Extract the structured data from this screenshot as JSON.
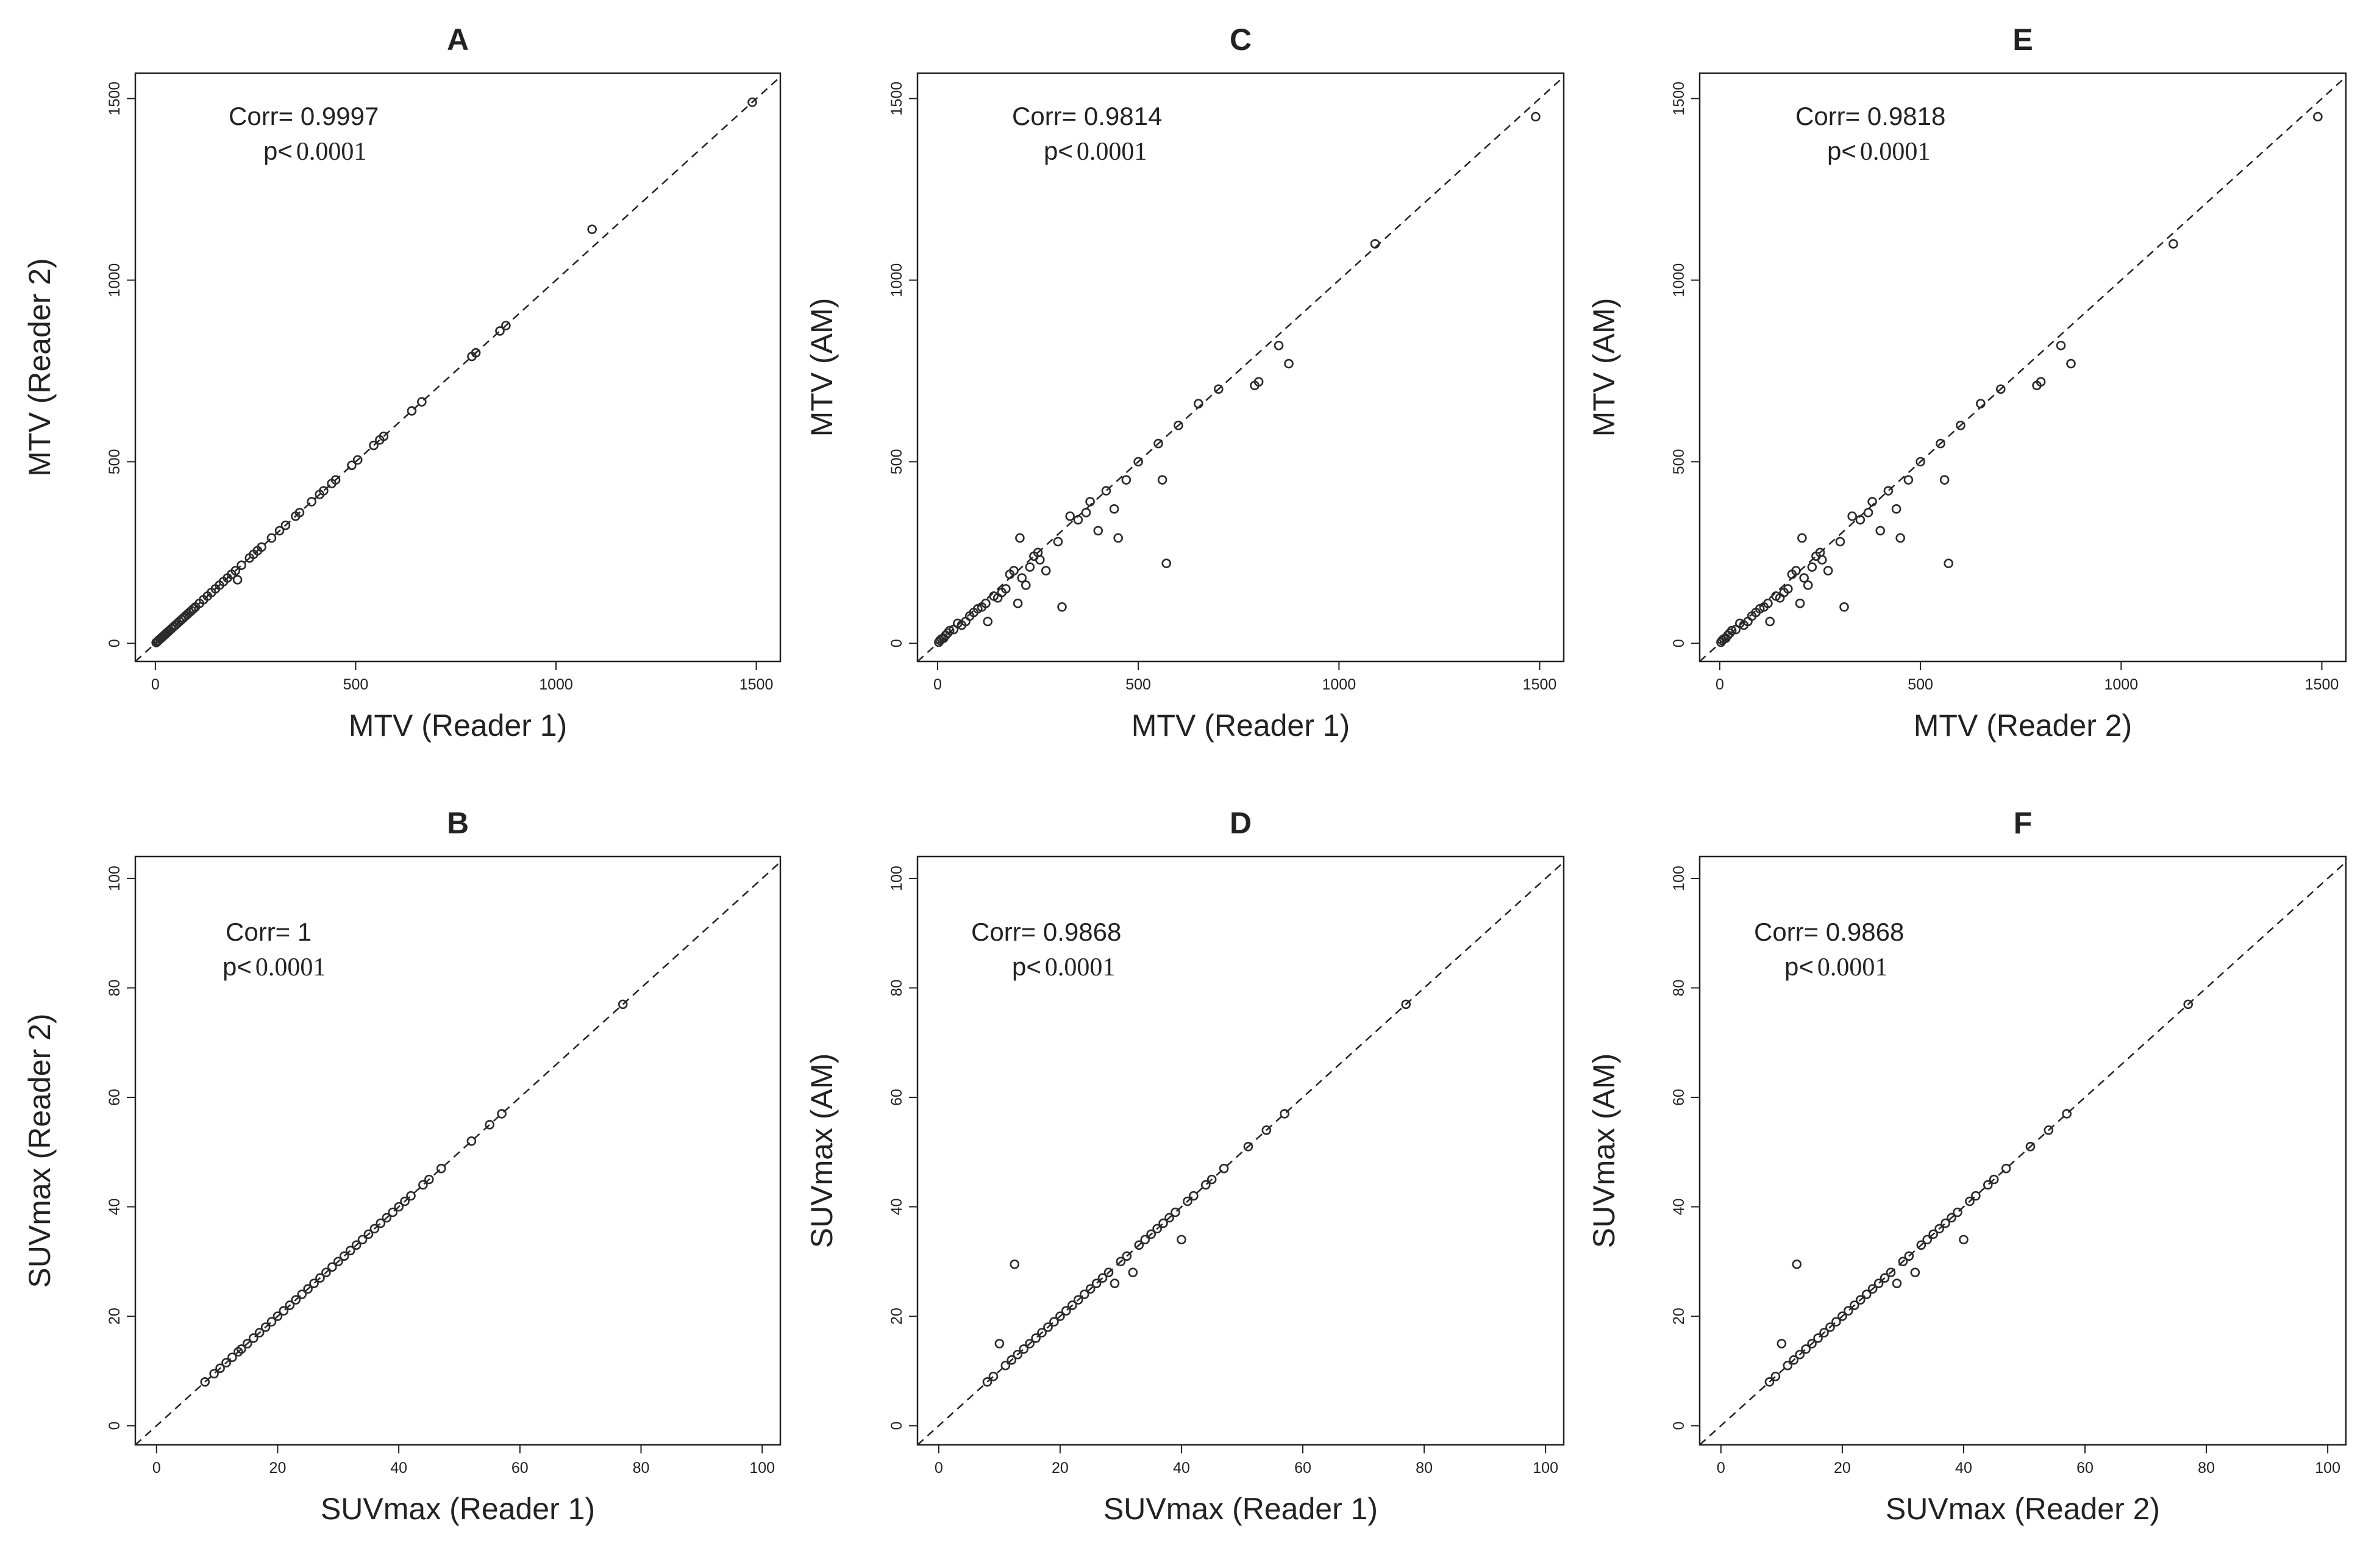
{
  "figure_label": "Six-panel scatter plot comparison of readers and AM",
  "chart_data": [
    {
      "panel": "A",
      "type": "scatter",
      "title": "A",
      "xlabel": "MTV (Reader 1)",
      "ylabel": "MTV (Reader 2)",
      "xlim": [
        -50,
        1560
      ],
      "ylim": [
        -50,
        1570
      ],
      "xticks": [
        0,
        500,
        1000,
        1500
      ],
      "yticks": [
        0,
        500,
        1000,
        1500
      ],
      "xtick_labels": [
        "0",
        "500",
        "1000",
        "1500"
      ],
      "ytick_labels": [
        "0",
        "500",
        "1000",
        "1500"
      ],
      "corr_text": "Corr= 0.9997",
      "p_prefix": "p<",
      "p_value": "0.0001",
      "reference_line": "y = x (dashed)",
      "points": [
        [
          2,
          2
        ],
        [
          5,
          5
        ],
        [
          8,
          8
        ],
        [
          12,
          12
        ],
        [
          15,
          15
        ],
        [
          18,
          18
        ],
        [
          22,
          22
        ],
        [
          25,
          25
        ],
        [
          28,
          28
        ],
        [
          32,
          32
        ],
        [
          35,
          35
        ],
        [
          40,
          40
        ],
        [
          45,
          45
        ],
        [
          50,
          50
        ],
        [
          55,
          55
        ],
        [
          60,
          60
        ],
        [
          65,
          65
        ],
        [
          70,
          70
        ],
        [
          75,
          75
        ],
        [
          80,
          80
        ],
        [
          85,
          85
        ],
        [
          90,
          90
        ],
        [
          95,
          95
        ],
        [
          100,
          100
        ],
        [
          110,
          110
        ],
        [
          120,
          120
        ],
        [
          130,
          130
        ],
        [
          140,
          140
        ],
        [
          150,
          150
        ],
        [
          160,
          160
        ],
        [
          170,
          170
        ],
        [
          180,
          180
        ],
        [
          190,
          190
        ],
        [
          200,
          200
        ],
        [
          205,
          175
        ],
        [
          215,
          215
        ],
        [
          235,
          235
        ],
        [
          245,
          245
        ],
        [
          255,
          255
        ],
        [
          265,
          265
        ],
        [
          290,
          290
        ],
        [
          310,
          310
        ],
        [
          325,
          325
        ],
        [
          350,
          350
        ],
        [
          360,
          360
        ],
        [
          390,
          390
        ],
        [
          410,
          410
        ],
        [
          420,
          420
        ],
        [
          440,
          440
        ],
        [
          450,
          450
        ],
        [
          490,
          490
        ],
        [
          505,
          505
        ],
        [
          545,
          545
        ],
        [
          560,
          560
        ],
        [
          570,
          570
        ],
        [
          640,
          640
        ],
        [
          665,
          665
        ],
        [
          790,
          790
        ],
        [
          800,
          800
        ],
        [
          860,
          860
        ],
        [
          875,
          875
        ],
        [
          1090,
          1140
        ],
        [
          1490,
          1490
        ]
      ]
    },
    {
      "panel": "B",
      "type": "scatter",
      "title": "B",
      "xlabel": "SUVmax (Reader 1)",
      "ylabel": "SUVmax (Reader 2)",
      "xlim": [
        -3.5,
        103
      ],
      "ylim": [
        -3.5,
        104
      ],
      "xticks": [
        0,
        20,
        40,
        60,
        80,
        100
      ],
      "yticks": [
        0,
        20,
        40,
        60,
        80,
        100
      ],
      "xtick_labels": [
        "0",
        "20",
        "40",
        "60",
        "80",
        "100"
      ],
      "ytick_labels": [
        "0",
        "20",
        "40",
        "60",
        "80",
        "100"
      ],
      "corr_text": "Corr= 1",
      "p_prefix": "p<",
      "p_value": "0.0001",
      "reference_line": "y = x (dashed)",
      "points": [
        [
          8,
          8
        ],
        [
          9.5,
          9.5
        ],
        [
          10.5,
          10.5
        ],
        [
          11.5,
          11.5
        ],
        [
          12.5,
          12.5
        ],
        [
          13.5,
          13.5
        ],
        [
          14,
          14
        ],
        [
          15,
          15
        ],
        [
          16,
          16
        ],
        [
          17,
          17
        ],
        [
          18,
          18
        ],
        [
          19,
          19
        ],
        [
          20,
          20
        ],
        [
          21,
          21
        ],
        [
          22,
          22
        ],
        [
          23,
          23
        ],
        [
          24,
          24
        ],
        [
          25,
          25
        ],
        [
          26,
          26
        ],
        [
          27,
          27
        ],
        [
          28,
          28
        ],
        [
          29,
          29
        ],
        [
          30,
          30
        ],
        [
          31,
          31
        ],
        [
          32,
          32
        ],
        [
          33,
          33
        ],
        [
          34,
          34
        ],
        [
          35,
          35
        ],
        [
          36,
          36
        ],
        [
          37,
          37
        ],
        [
          38,
          38
        ],
        [
          39,
          39
        ],
        [
          40,
          40
        ],
        [
          41,
          41
        ],
        [
          42,
          42
        ],
        [
          44,
          44
        ],
        [
          45,
          45
        ],
        [
          47,
          47
        ],
        [
          52,
          52
        ],
        [
          55,
          55
        ],
        [
          57,
          57
        ],
        [
          77,
          77
        ]
      ]
    },
    {
      "panel": "C",
      "type": "scatter",
      "title": "C",
      "xlabel": "MTV (Reader 1)",
      "ylabel": "MTV (AM)",
      "xlim": [
        -50,
        1560
      ],
      "ylim": [
        -50,
        1570
      ],
      "xticks": [
        0,
        500,
        1000,
        1500
      ],
      "yticks": [
        0,
        500,
        1000,
        1500
      ],
      "xtick_labels": [
        "0",
        "500",
        "1000",
        "1500"
      ],
      "ytick_labels": [
        "0",
        "500",
        "1000",
        "1500"
      ],
      "corr_text": "Corr= 0.9814",
      "p_prefix": "p<",
      "p_value": "0.0001",
      "reference_line": "y = x (dashed)",
      "points": [
        [
          3,
          3
        ],
        [
          6,
          8
        ],
        [
          10,
          12
        ],
        [
          15,
          14
        ],
        [
          20,
          22
        ],
        [
          25,
          28
        ],
        [
          30,
          35
        ],
        [
          40,
          38
        ],
        [
          50,
          55
        ],
        [
          60,
          50
        ],
        [
          70,
          60
        ],
        [
          80,
          75
        ],
        [
          90,
          85
        ],
        [
          100,
          95
        ],
        [
          110,
          100
        ],
        [
          120,
          110
        ],
        [
          125,
          60
        ],
        [
          140,
          130
        ],
        [
          150,
          125
        ],
        [
          160,
          140
        ],
        [
          170,
          150
        ],
        [
          180,
          190
        ],
        [
          190,
          200
        ],
        [
          200,
          110
        ],
        [
          205,
          290
        ],
        [
          210,
          180
        ],
        [
          220,
          160
        ],
        [
          230,
          210
        ],
        [
          240,
          240
        ],
        [
          250,
          250
        ],
        [
          255,
          230
        ],
        [
          270,
          200
        ],
        [
          300,
          280
        ],
        [
          310,
          100
        ],
        [
          330,
          350
        ],
        [
          350,
          340
        ],
        [
          370,
          360
        ],
        [
          380,
          390
        ],
        [
          400,
          310
        ],
        [
          420,
          420
        ],
        [
          440,
          370
        ],
        [
          450,
          290
        ],
        [
          470,
          450
        ],
        [
          500,
          500
        ],
        [
          550,
          550
        ],
        [
          560,
          450
        ],
        [
          570,
          220
        ],
        [
          600,
          600
        ],
        [
          650,
          660
        ],
        [
          700,
          700
        ],
        [
          790,
          710
        ],
        [
          800,
          720
        ],
        [
          850,
          820
        ],
        [
          875,
          770
        ],
        [
          1090,
          1100
        ],
        [
          1490,
          1450
        ]
      ]
    },
    {
      "panel": "D",
      "type": "scatter",
      "title": "D",
      "xlabel": "SUVmax (Reader 1)",
      "ylabel": "SUVmax (AM)",
      "xlim": [
        -3.5,
        103
      ],
      "ylim": [
        -3.5,
        104
      ],
      "xticks": [
        0,
        20,
        40,
        60,
        80,
        100
      ],
      "yticks": [
        0,
        20,
        40,
        60,
        80,
        100
      ],
      "xtick_labels": [
        "0",
        "20",
        "40",
        "60",
        "80",
        "100"
      ],
      "ytick_labels": [
        "0",
        "20",
        "40",
        "60",
        "80",
        "100"
      ],
      "corr_text": "Corr= 0.9868",
      "p_prefix": "p<",
      "p_value": "0.0001",
      "reference_line": "y = x (dashed)",
      "points": [
        [
          8,
          8
        ],
        [
          9,
          9
        ],
        [
          10,
          15
        ],
        [
          11,
          11
        ],
        [
          12,
          12
        ],
        [
          12.5,
          29.5
        ],
        [
          13,
          13
        ],
        [
          14,
          14
        ],
        [
          15,
          15
        ],
        [
          16,
          16
        ],
        [
          17,
          17
        ],
        [
          18,
          18
        ],
        [
          19,
          19
        ],
        [
          20,
          20
        ],
        [
          21,
          21
        ],
        [
          22,
          22
        ],
        [
          23,
          23
        ],
        [
          24,
          24
        ],
        [
          25,
          25
        ],
        [
          26,
          26
        ],
        [
          27,
          27
        ],
        [
          28,
          28
        ],
        [
          29,
          26
        ],
        [
          30,
          30
        ],
        [
          31,
          31
        ],
        [
          32,
          28
        ],
        [
          33,
          33
        ],
        [
          34,
          34
        ],
        [
          35,
          35
        ],
        [
          36,
          36
        ],
        [
          37,
          37
        ],
        [
          38,
          38
        ],
        [
          39,
          39
        ],
        [
          40,
          34
        ],
        [
          41,
          41
        ],
        [
          42,
          42
        ],
        [
          44,
          44
        ],
        [
          45,
          45
        ],
        [
          47,
          47
        ],
        [
          51,
          51
        ],
        [
          54,
          54
        ],
        [
          57,
          57
        ],
        [
          77,
          77
        ]
      ]
    },
    {
      "panel": "E",
      "type": "scatter",
      "title": "E",
      "xlabel": "MTV (Reader 2)",
      "ylabel": "MTV (AM)",
      "xlim": [
        -50,
        1560
      ],
      "ylim": [
        -50,
        1570
      ],
      "xticks": [
        0,
        500,
        1000,
        1500
      ],
      "yticks": [
        0,
        500,
        1000,
        1500
      ],
      "xtick_labels": [
        "0",
        "500",
        "1000",
        "1500"
      ],
      "ytick_labels": [
        "0",
        "500",
        "1000",
        "1500"
      ],
      "corr_text": "Corr= 0.9818",
      "p_prefix": "p<",
      "p_value": "0.0001",
      "reference_line": "y = x (dashed)",
      "points": [
        [
          3,
          3
        ],
        [
          6,
          8
        ],
        [
          10,
          12
        ],
        [
          15,
          14
        ],
        [
          20,
          22
        ],
        [
          25,
          28
        ],
        [
          30,
          35
        ],
        [
          40,
          38
        ],
        [
          50,
          55
        ],
        [
          60,
          50
        ],
        [
          70,
          60
        ],
        [
          80,
          75
        ],
        [
          90,
          85
        ],
        [
          100,
          95
        ],
        [
          110,
          100
        ],
        [
          120,
          110
        ],
        [
          125,
          60
        ],
        [
          140,
          130
        ],
        [
          150,
          125
        ],
        [
          160,
          140
        ],
        [
          170,
          150
        ],
        [
          180,
          190
        ],
        [
          190,
          200
        ],
        [
          200,
          110
        ],
        [
          205,
          290
        ],
        [
          210,
          180
        ],
        [
          220,
          160
        ],
        [
          230,
          210
        ],
        [
          240,
          240
        ],
        [
          250,
          250
        ],
        [
          255,
          230
        ],
        [
          270,
          200
        ],
        [
          300,
          280
        ],
        [
          310,
          100
        ],
        [
          330,
          350
        ],
        [
          350,
          340
        ],
        [
          370,
          360
        ],
        [
          380,
          390
        ],
        [
          400,
          310
        ],
        [
          420,
          420
        ],
        [
          440,
          370
        ],
        [
          450,
          290
        ],
        [
          470,
          450
        ],
        [
          500,
          500
        ],
        [
          550,
          550
        ],
        [
          560,
          450
        ],
        [
          570,
          220
        ],
        [
          600,
          600
        ],
        [
          650,
          660
        ],
        [
          700,
          700
        ],
        [
          790,
          710
        ],
        [
          800,
          720
        ],
        [
          850,
          820
        ],
        [
          875,
          770
        ],
        [
          1130,
          1100
        ],
        [
          1490,
          1450
        ]
      ]
    },
    {
      "panel": "F",
      "type": "scatter",
      "title": "F",
      "xlabel": "SUVmax (Reader 2)",
      "ylabel": "SUVmax (AM)",
      "xlim": [
        -3.5,
        103
      ],
      "ylim": [
        -3.5,
        104
      ],
      "xticks": [
        0,
        20,
        40,
        60,
        80,
        100
      ],
      "yticks": [
        0,
        20,
        40,
        60,
        80,
        100
      ],
      "xtick_labels": [
        "0",
        "20",
        "40",
        "60",
        "80",
        "100"
      ],
      "ytick_labels": [
        "0",
        "20",
        "40",
        "60",
        "80",
        "100"
      ],
      "corr_text": "Corr= 0.9868",
      "p_prefix": "p<",
      "p_value": "0.0001",
      "reference_line": "y = x (dashed)",
      "points": [
        [
          8,
          8
        ],
        [
          9,
          9
        ],
        [
          10,
          15
        ],
        [
          11,
          11
        ],
        [
          12,
          12
        ],
        [
          12.5,
          29.5
        ],
        [
          13,
          13
        ],
        [
          14,
          14
        ],
        [
          15,
          15
        ],
        [
          16,
          16
        ],
        [
          17,
          17
        ],
        [
          18,
          18
        ],
        [
          19,
          19
        ],
        [
          20,
          20
        ],
        [
          21,
          21
        ],
        [
          22,
          22
        ],
        [
          23,
          23
        ],
        [
          24,
          24
        ],
        [
          25,
          25
        ],
        [
          26,
          26
        ],
        [
          27,
          27
        ],
        [
          28,
          28
        ],
        [
          29,
          26
        ],
        [
          30,
          30
        ],
        [
          31,
          31
        ],
        [
          32,
          28
        ],
        [
          33,
          33
        ],
        [
          34,
          34
        ],
        [
          35,
          35
        ],
        [
          36,
          36
        ],
        [
          37,
          37
        ],
        [
          38,
          38
        ],
        [
          39,
          39
        ],
        [
          40,
          34
        ],
        [
          41,
          41
        ],
        [
          42,
          42
        ],
        [
          44,
          44
        ],
        [
          45,
          45
        ],
        [
          47,
          47
        ],
        [
          51,
          51
        ],
        [
          54,
          54
        ],
        [
          57,
          57
        ],
        [
          77,
          77
        ]
      ]
    }
  ],
  "colors": {
    "ink": "#222222",
    "marker": "#2a2a2a",
    "background": "#ffffff"
  }
}
